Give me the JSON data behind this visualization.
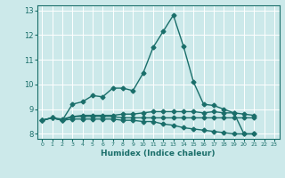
{
  "title": "",
  "xlabel": "Humidex (Indice chaleur)",
  "xlim": [
    -0.5,
    23.5
  ],
  "ylim": [
    7.8,
    13.2
  ],
  "yticks": [
    8,
    9,
    10,
    11,
    12,
    13
  ],
  "xticks": [
    0,
    1,
    2,
    3,
    4,
    5,
    6,
    7,
    8,
    9,
    10,
    11,
    12,
    13,
    14,
    15,
    16,
    17,
    18,
    19,
    20,
    21,
    22,
    23
  ],
  "background_color": "#cce9ea",
  "grid_color": "#ffffff",
  "line_color": "#1a6e6a",
  "lines": [
    [
      8.55,
      8.65,
      8.55,
      9.2,
      9.3,
      9.55,
      9.5,
      9.85,
      9.85,
      9.75,
      10.45,
      11.5,
      12.15,
      12.8,
      11.55,
      10.1,
      9.2,
      9.15,
      9.0,
      8.85,
      8.0,
      8.0,
      null,
      null
    ],
    [
      8.55,
      8.65,
      8.6,
      8.7,
      8.7,
      8.7,
      8.7,
      8.7,
      8.65,
      8.65,
      8.65,
      8.65,
      8.65,
      8.65,
      8.65,
      8.65,
      8.65,
      8.65,
      8.65,
      8.65,
      8.65,
      8.65,
      null,
      null
    ],
    [
      8.55,
      8.65,
      8.55,
      8.6,
      8.6,
      8.6,
      8.6,
      8.6,
      8.55,
      8.55,
      8.5,
      8.5,
      8.4,
      8.35,
      8.25,
      8.2,
      8.15,
      8.1,
      8.05,
      8.0,
      8.0,
      8.0,
      null,
      null
    ],
    [
      8.55,
      8.65,
      8.55,
      8.7,
      8.75,
      8.75,
      8.75,
      8.75,
      8.8,
      8.8,
      8.85,
      8.9,
      8.9,
      8.9,
      8.9,
      8.9,
      8.85,
      8.9,
      8.85,
      8.85,
      8.8,
      8.75,
      null,
      null
    ]
  ],
  "marker_size": 2.5,
  "line_width": 1.0
}
